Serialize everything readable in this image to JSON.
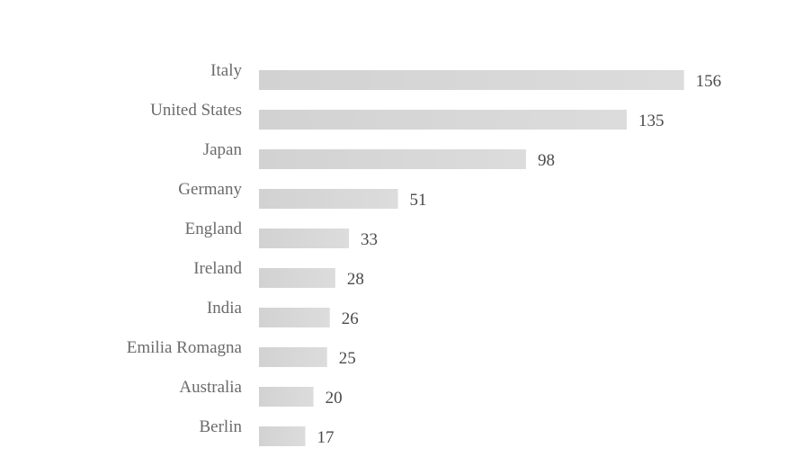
{
  "chart_data": {
    "type": "bar",
    "orientation": "horizontal",
    "categories": [
      "Italy",
      "United States",
      "Japan",
      "Germany",
      "England",
      "Ireland",
      "India",
      "Emilia Romagna",
      "Australia",
      "Berlin"
    ],
    "values": [
      156,
      135,
      98,
      51,
      33,
      28,
      26,
      25,
      20,
      17
    ],
    "data_labels": true,
    "grid": false,
    "legend": "none",
    "colors": {
      "bar": "#d9d9d9",
      "category_text": "#6b6b6b",
      "value_text": "#4a4a4a"
    }
  }
}
